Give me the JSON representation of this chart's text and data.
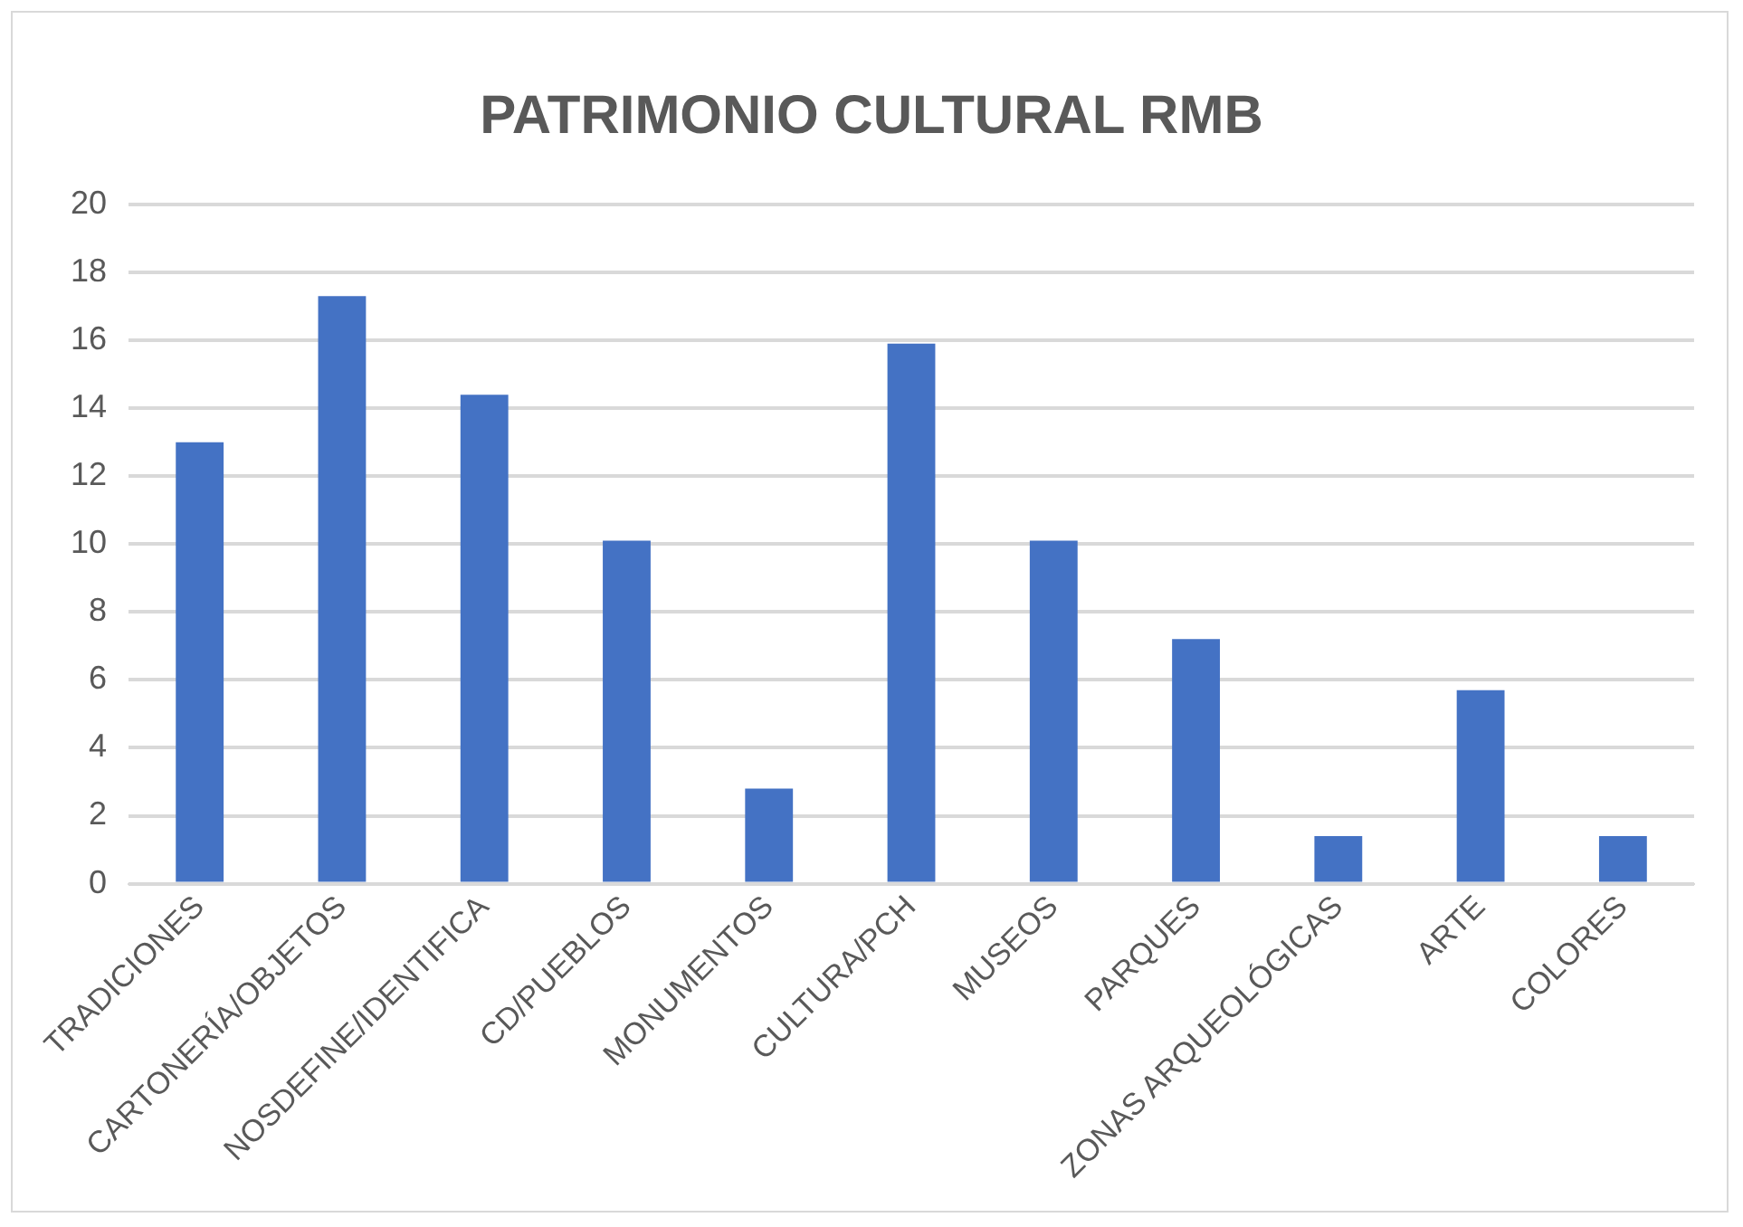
{
  "chart_data": {
    "type": "bar",
    "title": "PATRIMONIO CULTURAL RMB",
    "categories": [
      "TRADICIONES",
      "CARTONERÍA/OBJETOS",
      "NOSDEFINE/IDENTIFICA",
      "CD/PUEBLOS",
      "MONUMENTOS",
      "CULTURA/PCH",
      "MUSEOS",
      "PARQUES",
      "ZONAS ARQUEOLÓGICAS",
      "ARTE",
      "COLORES"
    ],
    "values": [
      13,
      17.3,
      14.4,
      10.1,
      2.8,
      15.9,
      10.1,
      7.2,
      1.4,
      5.7,
      1.4
    ],
    "color": "#4472c4",
    "ylim": [
      0,
      20
    ],
    "yticks": [
      0,
      2,
      4,
      6,
      8,
      10,
      12,
      14,
      16,
      18,
      20
    ],
    "grid": "y",
    "legend": false
  }
}
